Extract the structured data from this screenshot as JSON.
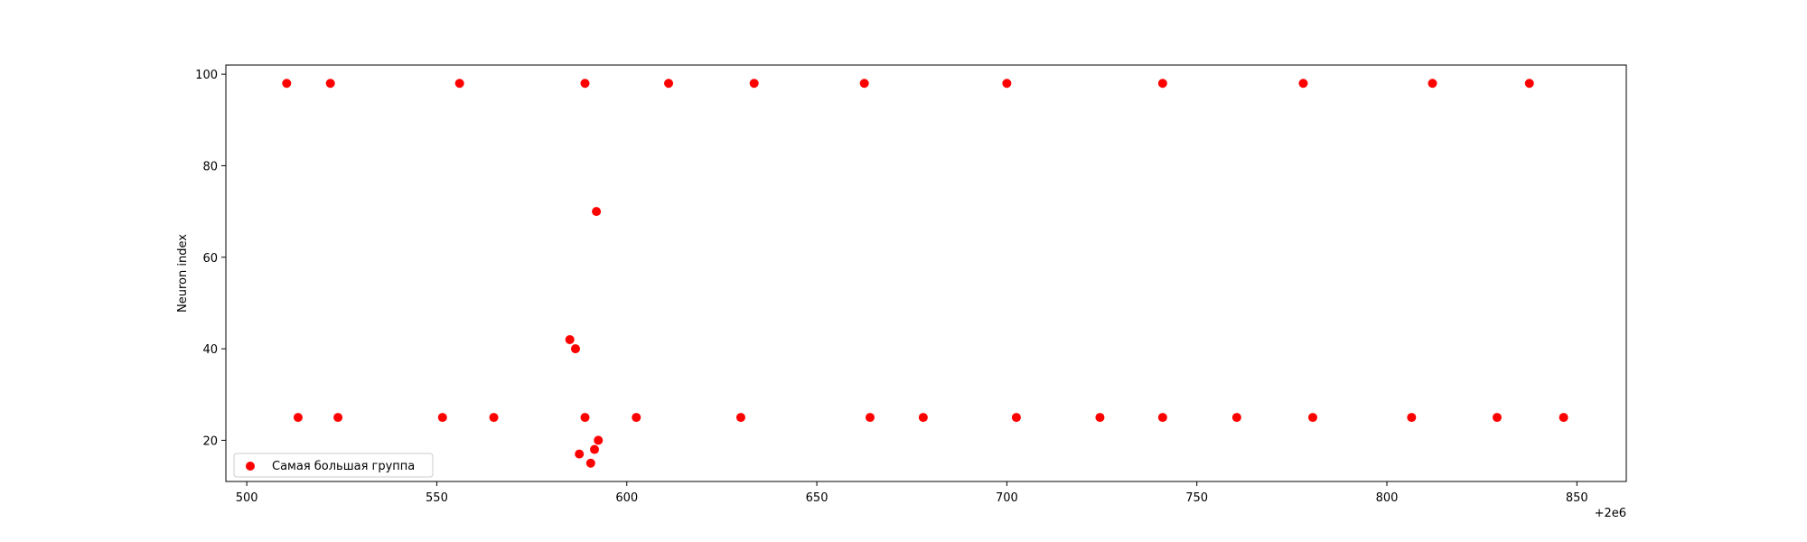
{
  "chart_data": {
    "type": "scatter",
    "title": "",
    "xlabel": "",
    "ylabel": "Neuron index",
    "x_offset_label": "+2e6",
    "xlim": [
      494.5,
      863
    ],
    "ylim": [
      11,
      102
    ],
    "xticks": [
      500,
      550,
      600,
      650,
      700,
      750,
      800,
      850
    ],
    "yticks": [
      20,
      40,
      60,
      80,
      100
    ],
    "grid": false,
    "legend_position": "lower-left",
    "series": [
      {
        "name": "Самая большая группа",
        "color": "#ff0000",
        "points": [
          {
            "x": 510.5,
            "y": 98
          },
          {
            "x": 522,
            "y": 98
          },
          {
            "x": 556,
            "y": 98
          },
          {
            "x": 589,
            "y": 98
          },
          {
            "x": 611,
            "y": 98
          },
          {
            "x": 633.5,
            "y": 98
          },
          {
            "x": 662.5,
            "y": 98
          },
          {
            "x": 700,
            "y": 98
          },
          {
            "x": 741,
            "y": 98
          },
          {
            "x": 778,
            "y": 98
          },
          {
            "x": 812,
            "y": 98
          },
          {
            "x": 837.5,
            "y": 98
          },
          {
            "x": 592,
            "y": 70
          },
          {
            "x": 585,
            "y": 42
          },
          {
            "x": 586.5,
            "y": 40
          },
          {
            "x": 513.5,
            "y": 25
          },
          {
            "x": 524,
            "y": 25
          },
          {
            "x": 551.5,
            "y": 25
          },
          {
            "x": 565,
            "y": 25
          },
          {
            "x": 589,
            "y": 25
          },
          {
            "x": 602.5,
            "y": 25
          },
          {
            "x": 630,
            "y": 25
          },
          {
            "x": 664,
            "y": 25
          },
          {
            "x": 678,
            "y": 25
          },
          {
            "x": 702.5,
            "y": 25
          },
          {
            "x": 724.5,
            "y": 25
          },
          {
            "x": 741,
            "y": 25
          },
          {
            "x": 760.5,
            "y": 25
          },
          {
            "x": 780.5,
            "y": 25
          },
          {
            "x": 806.5,
            "y": 25
          },
          {
            "x": 829,
            "y": 25
          },
          {
            "x": 846.5,
            "y": 25
          },
          {
            "x": 592.5,
            "y": 20
          },
          {
            "x": 591.5,
            "y": 18
          },
          {
            "x": 587.5,
            "y": 17
          },
          {
            "x": 590.5,
            "y": 15
          }
        ]
      }
    ]
  }
}
